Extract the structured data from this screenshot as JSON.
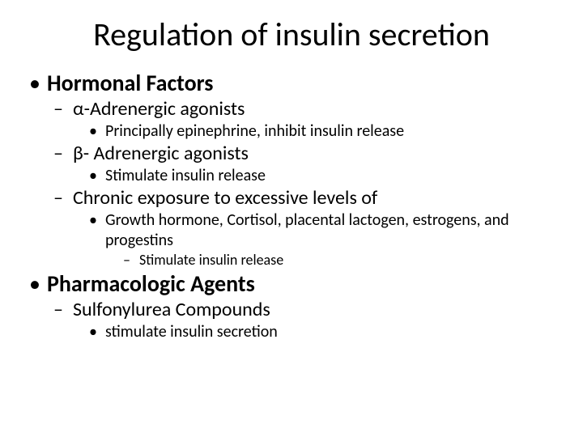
{
  "title": "Regulation of insulin secretion",
  "b1": {
    "text": "Hormonal Factors",
    "s1": {
      "text": "α-Adrenergic agonists",
      "d1": "Principally  epinephrine, inhibit insulin release"
    },
    "s2": {
      "text": "β- Adrenergic agonists",
      "d1": "Stimulate insulin release"
    },
    "s3": {
      "text": "Chronic exposure to excessive levels of",
      "d1": "Growth hormone, Cortisol, placental lactogen, estrogens, and progestins",
      "e1": "Stimulate insulin release"
    }
  },
  "b2": {
    "text": "Pharmacologic Agents",
    "s1": {
      "text": "Sulfonylurea Compounds",
      "d1": "stimulate insulin secretion"
    }
  },
  "style": {
    "background_color": "#ffffff",
    "text_color": "#000000",
    "font_family": "Calibri",
    "title_fontsize": 40,
    "lvl1_fontsize": 28,
    "lvl2_fontsize": 24,
    "lvl3_fontsize": 20,
    "lvl4_fontsize": 18,
    "lvl1_bullet": "•",
    "lvl2_bullet": "–",
    "lvl3_bullet": "•",
    "lvl4_bullet": "–",
    "lvl1_fontweight": 700,
    "slide_width": 720,
    "slide_height": 540
  }
}
